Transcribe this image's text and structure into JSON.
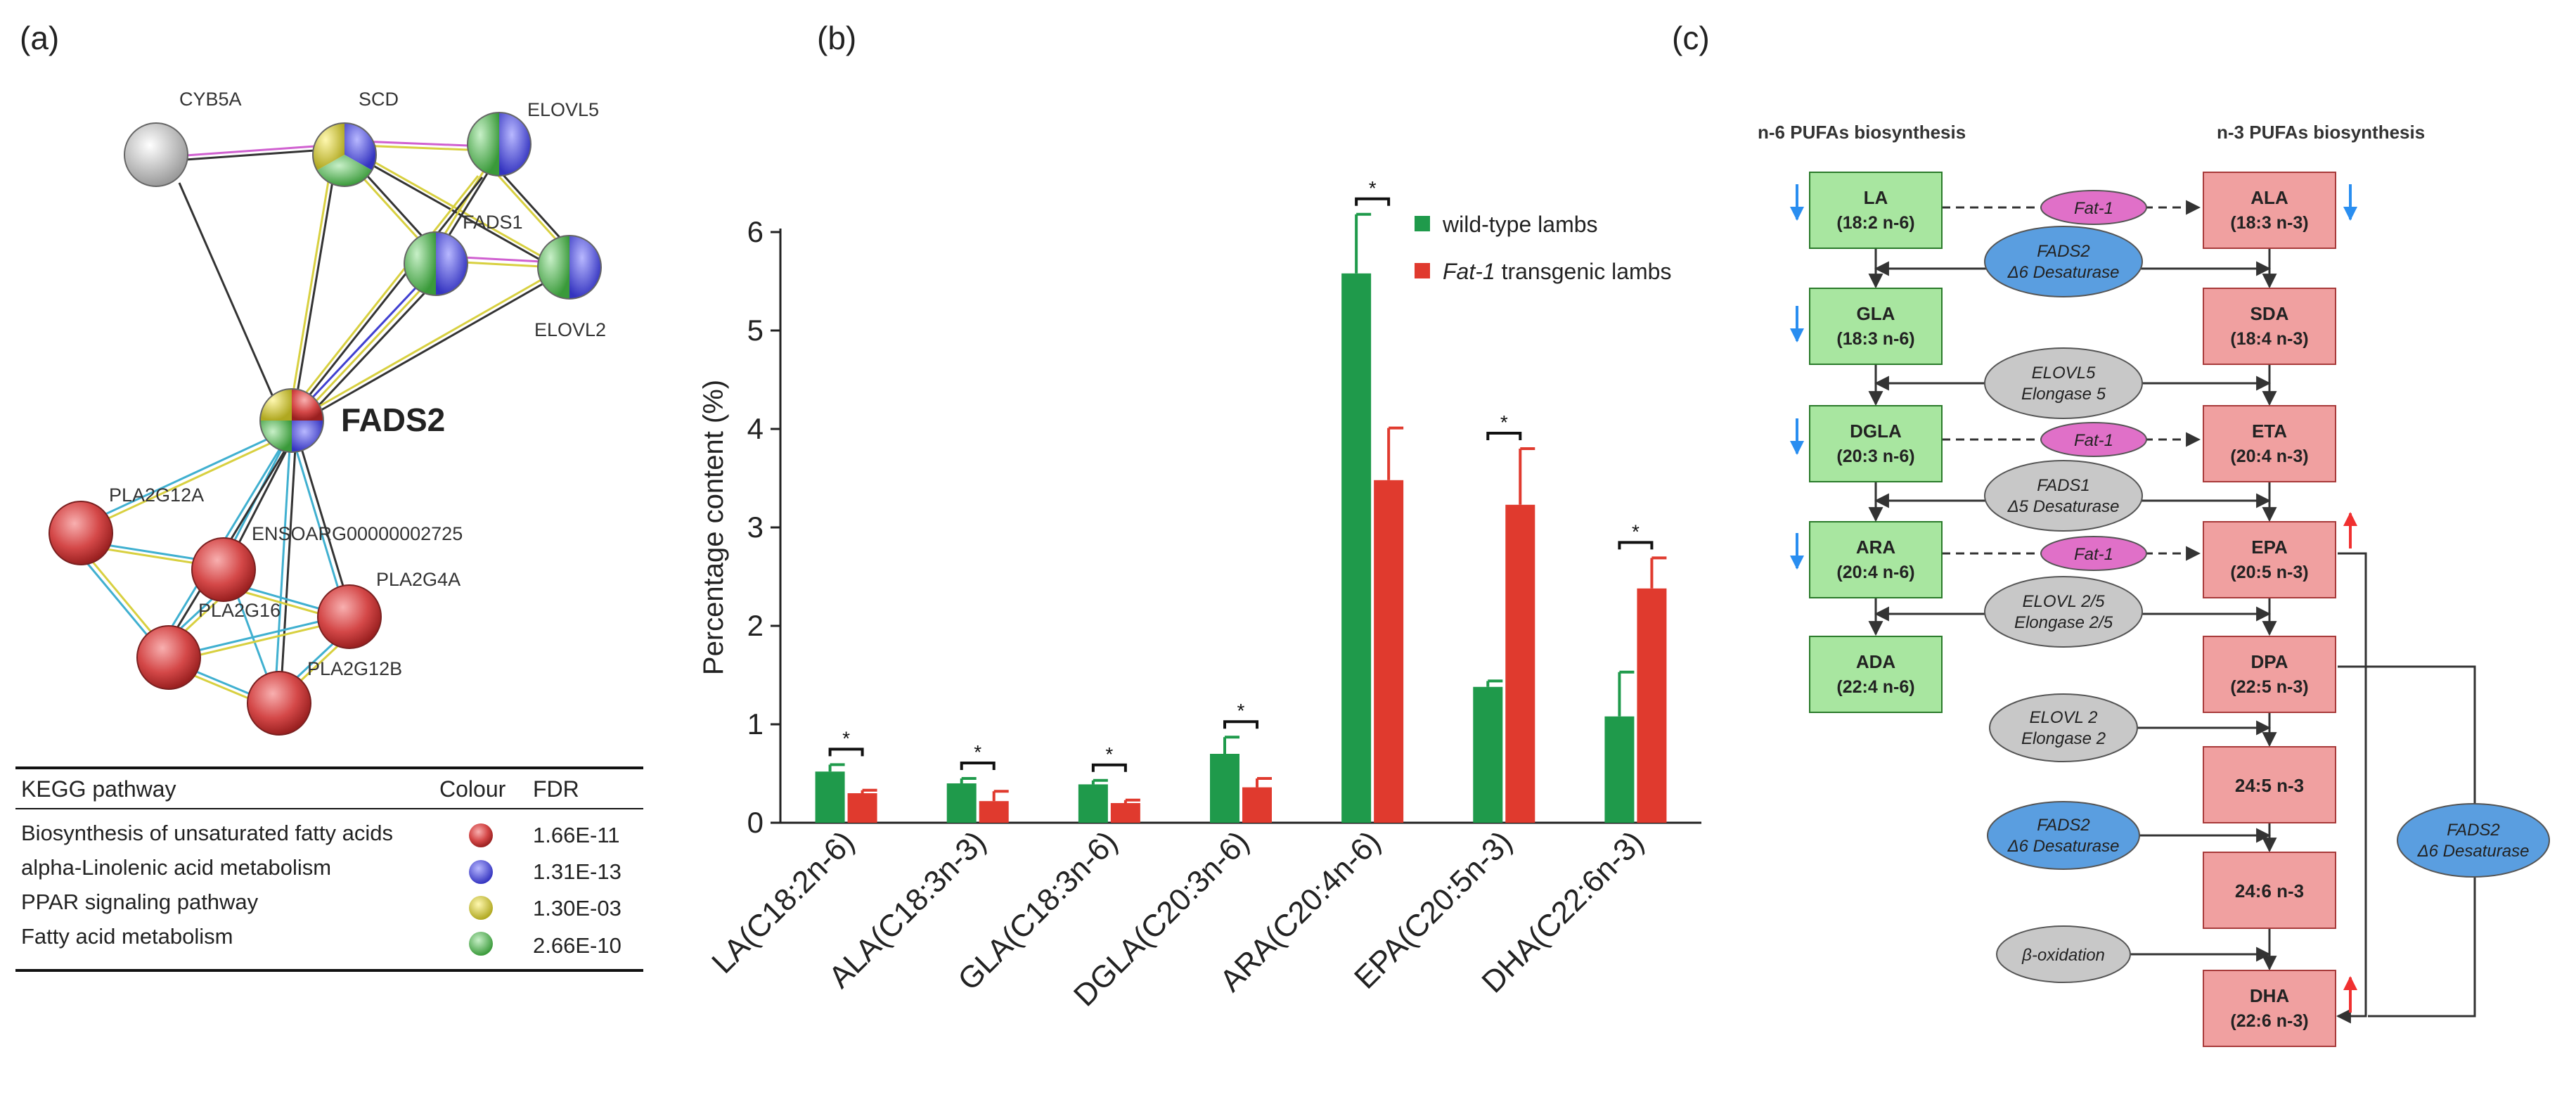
{
  "panel_labels": {
    "a": "(a)",
    "b": "(b)",
    "c": "(c)"
  },
  "network": {
    "nodes": {
      "cyb5a": "CYB5A",
      "scd": "SCD",
      "elovl5": "ELOVL5",
      "fads1": "FADS1",
      "elovl2": "ELOVL2",
      "fads2": "FADS2",
      "pla2g12a": "PLA2G12A",
      "ensoarg": "ENSOARG00000002725",
      "pla2g4a": "PLA2G4A",
      "pla2g16": "PLA2G16",
      "pla2g12b": "PLA2G12B"
    }
  },
  "kegg_table": {
    "headers": {
      "pathway": "KEGG pathway",
      "colour": "Colour",
      "fdr": "FDR"
    },
    "rows": [
      {
        "pathway": "Biosynthesis of unsaturated fatty acids",
        "color": "#d64a4a",
        "fdr": "1.66E-11"
      },
      {
        "pathway": "alpha-Linolenic acid metabolism",
        "color": "#4a4ad0",
        "fdr": "1.31E-13"
      },
      {
        "pathway": "PPAR signaling pathway",
        "color": "#d8d040",
        "fdr": "1.30E-03"
      },
      {
        "pathway": "Fatty acid metabolism",
        "color": "#4fae4f",
        "fdr": "2.66E-10"
      }
    ]
  },
  "chart_data": {
    "type": "bar",
    "ylabel": "Percentage content (%)",
    "ylim": [
      0,
      6
    ],
    "yticks": [
      "0",
      "1",
      "2",
      "3",
      "4",
      "5",
      "6"
    ],
    "categories": [
      "LA(C18:2n-6)",
      "ALA(C18:3n-3)",
      "GLA(C18:3n-6)",
      "DGLA(C20:3n-6)",
      "ARA(C20:4n-6)",
      "EPA(C20:5n-3)",
      "DHA(C22:6n-3)"
    ],
    "series": [
      {
        "name": "wild-type lambs",
        "color": "#1f9a4b",
        "values": [
          0.52,
          0.4,
          0.39,
          0.7,
          5.58,
          1.38,
          1.08
        ],
        "errors": [
          0.07,
          0.05,
          0.04,
          0.17,
          0.6,
          0.06,
          0.45
        ]
      },
      {
        "name": "Fat-1 transgenic lambs",
        "legend_italic": "Fat-1",
        "legend_rest": " transgenic lambs",
        "color": "#e03a2e",
        "values": [
          0.3,
          0.22,
          0.2,
          0.36,
          3.48,
          3.23,
          2.38
        ],
        "errors": [
          0.03,
          0.1,
          0.03,
          0.09,
          0.53,
          0.57,
          0.31
        ]
      }
    ],
    "significance": [
      "*",
      "*",
      "*",
      "*",
      "*",
      "*",
      "*"
    ]
  },
  "pathway": {
    "n6_title": "n-6 PUFAs biosynthesis",
    "n3_title": "n-3 PUFAs biosynthesis",
    "n6": [
      {
        "name": "LA",
        "formula": "(18:2 n-6)"
      },
      {
        "name": "GLA",
        "formula": "(18:3 n-6)"
      },
      {
        "name": "DGLA",
        "formula": "(20:3 n-6)"
      },
      {
        "name": "ARA",
        "formula": "(20:4 n-6)"
      },
      {
        "name": "ADA",
        "formula": "(22:4 n-6)"
      }
    ],
    "n3": [
      {
        "name": "ALA",
        "formula": "(18:3 n-3)"
      },
      {
        "name": "SDA",
        "formula": "(18:4 n-3)"
      },
      {
        "name": "ETA",
        "formula": "(20:4 n-3)"
      },
      {
        "name": "EPA",
        "formula": "(20:5 n-3)"
      },
      {
        "name": "DPA",
        "formula": "(22:5 n-3)"
      },
      {
        "name": "24:5 n-3",
        "formula": ""
      },
      {
        "name": "24:6 n-3",
        "formula": ""
      },
      {
        "name": "DHA",
        "formula": "(22:6 n-3)"
      }
    ],
    "fat1": "Fat-1",
    "enzymes": {
      "fads2": {
        "l1": "FADS2",
        "l2": "Δ6 Desaturase"
      },
      "elovl5": {
        "l1": "ELOVL5",
        "l2": "Elongase 5"
      },
      "fads1": {
        "l1": "FADS1",
        "l2": "Δ5 Desaturase"
      },
      "elovl25": {
        "l1": "ELOVL 2/5",
        "l2": "Elongase 2/5"
      },
      "elovl2": {
        "l1": "ELOVL 2",
        "l2": "Elongase 2"
      },
      "fads2b": {
        "l1": "FADS2",
        "l2": "Δ6 Desaturase"
      },
      "beta": {
        "l1": "β-oxidation",
        "l2": ""
      },
      "fads2c": {
        "l1": "FADS2",
        "l2": "Δ6 Desaturase"
      }
    },
    "colors": {
      "n6_fill": "#a8e6a0",
      "n3_fill": "#f0a0a0",
      "fat1": "#e070c8",
      "fads": "#5a9ee0",
      "grey": "#c8c8c8",
      "blue_arrow": "#2a8ef0",
      "red_arrow": "#f03030"
    }
  }
}
